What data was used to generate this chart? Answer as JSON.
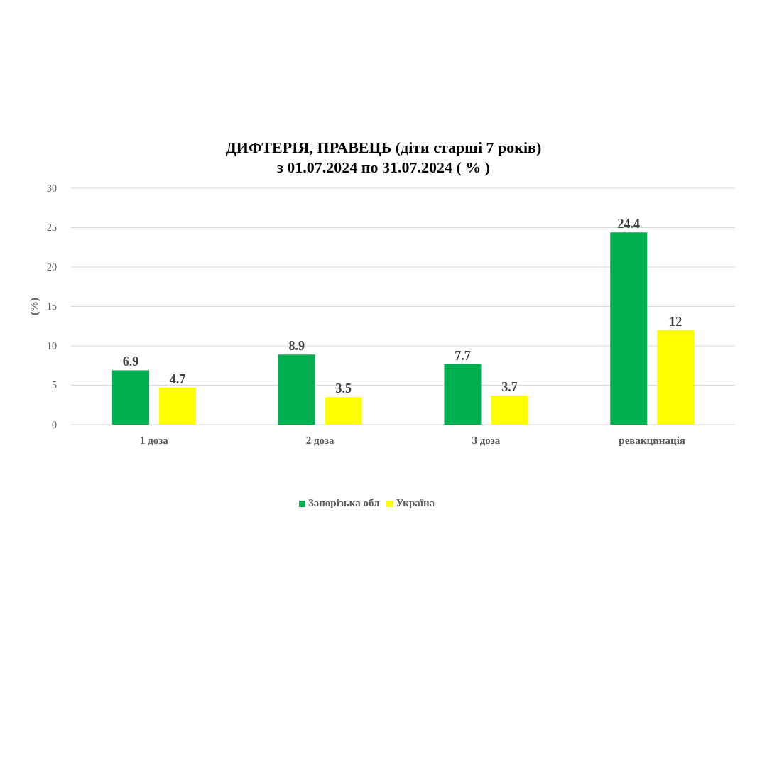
{
  "chart_data": {
    "type": "bar",
    "title": "ДИФТЕРІЯ, ПРАВЕЦЬ (діти старші 7 років)\nз 01.07.2024 по 31.07.2024 ( % )",
    "ylabel": "(%)",
    "categories": [
      "1 доза",
      "2 доза",
      "3 доза",
      "ревакцинація"
    ],
    "series": [
      {
        "name": "Запорізька обл",
        "color": "#00b050",
        "values": [
          6.9,
          8.9,
          7.7,
          24.4
        ]
      },
      {
        "name": "Україна",
        "color": "#ffff00",
        "values": [
          4.7,
          3.5,
          3.7,
          12
        ]
      }
    ],
    "ylim": [
      0,
      30
    ],
    "yticks": [
      0,
      5,
      10,
      15,
      20,
      25,
      30
    ],
    "grid": "y",
    "legend": "bottom",
    "data_labels": true
  }
}
